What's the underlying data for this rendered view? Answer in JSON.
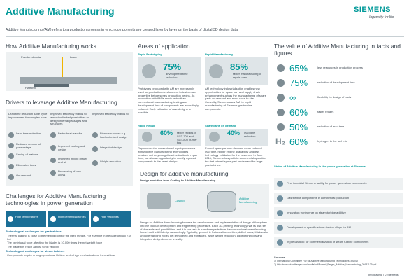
{
  "header": {
    "title": "Additive Manufacturing",
    "logo": "SIEMENS",
    "tagline": "Ingenuity for life",
    "intro": "Additive Manufacturing (AM) refers to a production process in which components are created layer by layer on the basis of digital 3D design data."
  },
  "how_works": {
    "title": "How Additive Manufacturing works",
    "labels": [
      "Powdered metal",
      "Laser",
      "Platform"
    ]
  },
  "drivers": {
    "title": "Drivers to leverage Additive Manufacturing",
    "columns": [
      {
        "heading": "Lead time reduction & life cycle improvement for complex parts",
        "items": [
          "Lead time reduction",
          "Reduced number of power steps",
          "Saving of material",
          "Eliminated tools",
          "On-demand"
        ]
      },
      {
        "heading": "Improved efficiency thanks to almost unlimited possibilities to design internal passages and structures",
        "items": [
          "Better heat transfer",
          "Improved cooling and design",
          "Improved mixing of fuel and air",
          "Processing of new alloys"
        ]
      },
      {
        "heading": "Improved efficiency thanks to:",
        "items": [
          "Bionic structures e.g. load optimized design",
          "Integrated design",
          "Weight reduction"
        ]
      }
    ]
  },
  "challenges": {
    "title": "Challenges for Additive Manufacturing technologies in power generation",
    "boxes": [
      "High temperatures",
      "High centrifugal forces",
      "High velocities"
    ],
    "gas_heading": "Technological challenges for gas turbines",
    "gas_bullets": [
      "Thermal loading is close to the melting point of the used metals. For example in the case of Inco 718 hot",
      "The centrifugal force affecting the blades is 10,000 times the net weight force",
      "The blade tips reach almost sonic velocity"
    ],
    "steam_heading": "Technological challenges for steam turbines",
    "steam_bullets": [
      "Components require a long operational lifetime under high mechanical and thermal load"
    ]
  },
  "areas": {
    "title": "Areas of application",
    "cards": [
      {
        "label": "Rapid Prototyping",
        "stat": "75%",
        "stat_label": "development time reduction",
        "text": "Prototypes produced with AM are increasingly used for production development to test certain properties before series production begins. As production with AM is much faster than conventional manufacturing, testing and development time of components are accordingly reduced. Early validation of new designs is possible."
      },
      {
        "label": "Rapid Manufacturing",
        "stat": "85%",
        "stat_label": "faster manufacturing of repair parts",
        "text": "AM technology industrialization enables new opportunities for spare part and supply chain enhancement such as the manufacturing of spare parts on demand and even close to site. Currently, Siemens uses AM for rapid manufacturing of Siemens gas turbine components."
      },
      {
        "label": "Rapid Repair",
        "stat": "60%",
        "stat_label": "faster repairs of SGT-700 and SGT-800 burner tips",
        "text": "Replacement of conventional repair processes with Additive Manufacturing technologies provides not only a significant reduction in repair time, but also an opportunity to modify repaired components to the latest design."
      },
      {
        "label": "Spare parts on demand",
        "stat": "40%",
        "stat_label": "lead time reduction",
        "text": "Printed spare parts on demand mean reduced lead time, higher engine availability and less technology validation for the customer. In June 2016, Siemens has put into commercial operation the first printed spare part on demand for large gas turbines."
      }
    ]
  },
  "design": {
    "title": "Design for additive manufacturing",
    "subtitle": "Design evolution from Casting to Additive Manufacturing",
    "labels": [
      "Casting",
      "Additive Manufacturing"
    ],
    "text": "Design for Additive Manufacturing focuses the development and implementation of design philosophies into the product development and engineering processes. Each 3D-printing technology has its own set of demands and possibilities, and it is our task to transform parts from the conventional manufacturing focus into the AM design accordingly. Typically, geometric features like cavities, drilled holes, thick walls and overhanging edges get remodeled and enhanced, while weight reduction, added functions and integrated design become a reality."
  },
  "value": {
    "title": "The value of Additive Manufacturing in facts and figures",
    "facts": [
      {
        "stat": "65%",
        "label": "less resources in production process"
      },
      {
        "stat": "75%",
        "label": "reduction of development time"
      },
      {
        "stat": "∞",
        "label": "flexibility for design of parts"
      },
      {
        "stat": "60%",
        "label": "faster repairs"
      },
      {
        "stat": "50%",
        "label": "reduction of lead time"
      },
      {
        "prefix": "H₂",
        "stat": "60%",
        "label": "hydrogen in the fuel mix"
      }
    ],
    "status_title": "Status of Additive Manufacturing in the power generation at Siemens",
    "status": [
      "First industrial Siemens facility for power generation components",
      "Gas turbine components in commercial production",
      "Innovation frontrunner on steam turbine additive",
      "Development of specific steam turbine alloys for AM",
      "In preparation: for commercialization of steam turbine components"
    ],
    "sources_title": "Sources",
    "sources": [
      "1) International Committee F42 for Additive Manufacturing Technologies (ASTM)",
      "2) http://www.rolandberger.com/media/pdf/Roland_Berger_Additive_Manufacturing_20131129.pdf"
    ]
  },
  "footer": "Infographic | © Siemens"
}
